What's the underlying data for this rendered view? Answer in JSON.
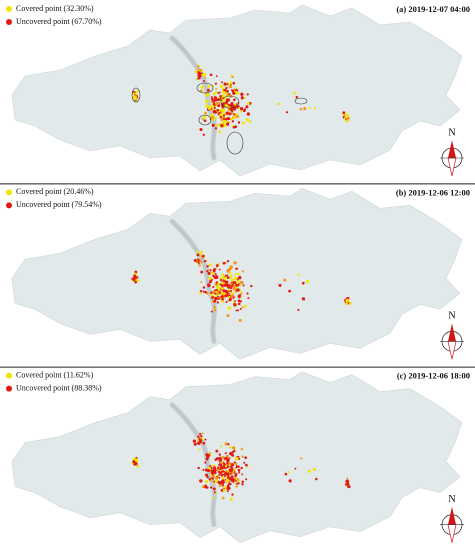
{
  "panels": [
    {
      "title": "(a) 2019-12-07 04:00",
      "legend": [
        {
          "label": "Covered point (32.30%)",
          "color": "#f2e600"
        },
        {
          "label": "Uncovered point (67.70%)",
          "color": "#e01a12"
        }
      ],
      "north": "N"
    },
    {
      "title": "(b) 2019-12-06 12:00",
      "legend": [
        {
          "label": "Covered point (20.46%)",
          "color": "#f2e600"
        },
        {
          "label": "Uncovered point (79.54%)",
          "color": "#e01a12"
        }
      ],
      "north": "N"
    },
    {
      "title": "(c) 2019-12-06 18:00",
      "legend": [
        {
          "label": "Covered point (11.62%)",
          "color": "#f2e600"
        },
        {
          "label": "Uncovered point (88.38%)",
          "color": "#e01a12"
        }
      ],
      "north": "N"
    }
  ]
}
